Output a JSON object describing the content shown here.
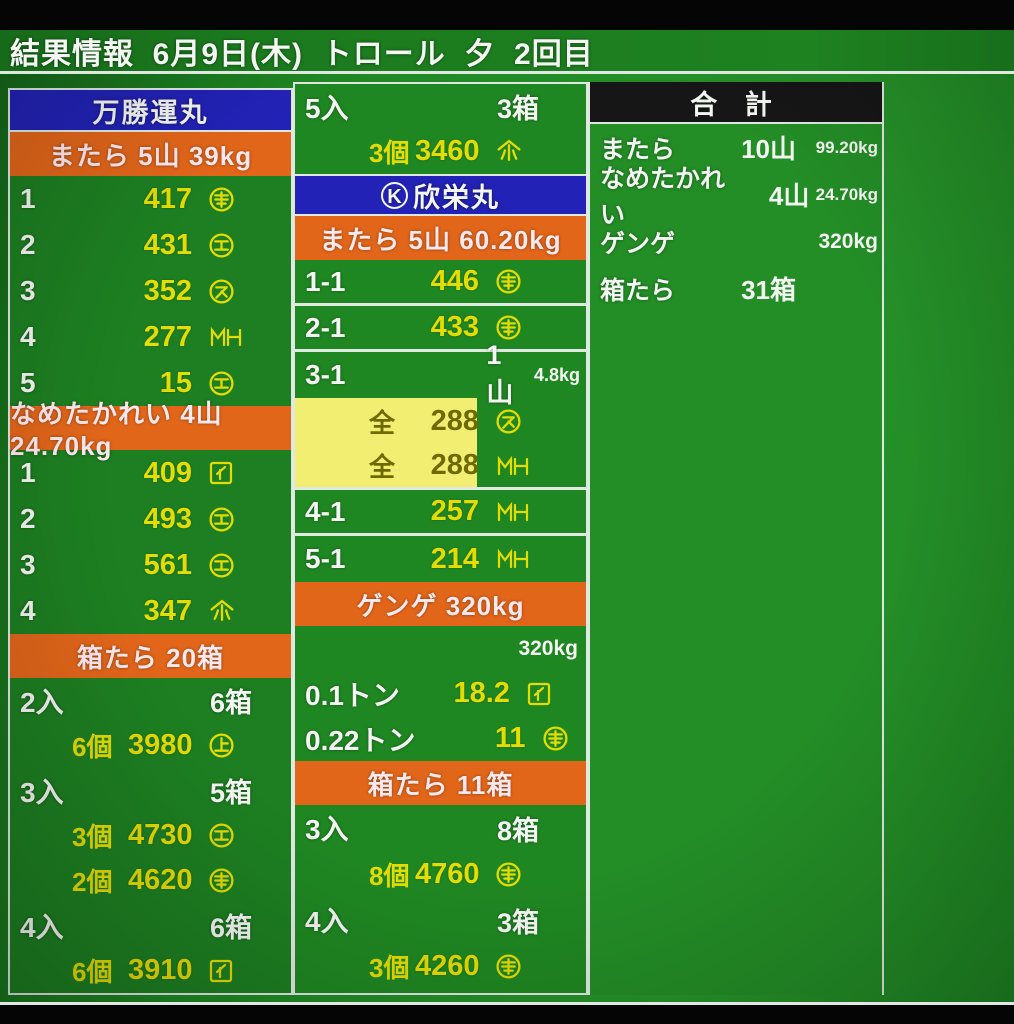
{
  "title": "結果情報  6月9日(木)  トロール  夕  2回目",
  "colors": {
    "background_green": "#1f8823",
    "title_green": "#1b7a1e",
    "header_blue": "#2222b6",
    "header_orange": "#e2661a",
    "totals_black": "#161616",
    "value_yellow": "#e5dc00",
    "text_white": "#f4f6f3",
    "highlight_yellow": "#f2ee72",
    "highlight_text": "#6e6a00",
    "line_white": "#dfe9e2"
  },
  "panels": {
    "left": {
      "vessel": "万勝運丸",
      "sections": [
        {
          "header": "またら 5山 39kg",
          "rows": [
            {
              "no": "1",
              "value": "417",
              "mark": "maru-kou-icon"
            },
            {
              "no": "2",
              "value": "431",
              "mark": "maru-e-icon"
            },
            {
              "no": "3",
              "value": "352",
              "mark": "maru-su-icon"
            },
            {
              "no": "4",
              "value": "277",
              "mark": "mh-icon"
            },
            {
              "no": "5",
              "value": "15",
              "mark": "maru-e-icon"
            }
          ]
        },
        {
          "header": "なめたかれい 4山 24.70kg",
          "rows": [
            {
              "no": "1",
              "value": "409",
              "mark": "kaku-i-icon"
            },
            {
              "no": "2",
              "value": "493",
              "mark": "maru-e-icon"
            },
            {
              "no": "3",
              "value": "561",
              "mark": "maru-e-icon"
            },
            {
              "no": "4",
              "value": "347",
              "mark": "yama-icon"
            }
          ]
        },
        {
          "header": "箱たら 20箱",
          "rows": [
            {
              "no": "2入",
              "aux": "6箱"
            },
            {
              "count": "6個",
              "value": "3980",
              "mark": "maru-ue-icon"
            },
            {
              "no": "3入",
              "aux": "5箱"
            },
            {
              "count": "3個",
              "value": "4730",
              "mark": "maru-e-icon"
            },
            {
              "count": "2個",
              "value": "4620",
              "mark": "maru-kou-icon"
            },
            {
              "no": "4入",
              "aux": "6箱"
            },
            {
              "count": "6個",
              "value": "3910",
              "mark": "kaku-i-icon"
            }
          ]
        }
      ]
    },
    "middle": {
      "carryover": [
        {
          "no": "5入",
          "aux": "3箱"
        },
        {
          "count": "3個",
          "value": "3460",
          "mark": "yama-icon"
        }
      ],
      "vessel_mark_letter": "K",
      "vessel_name": "欣栄丸",
      "sections": [
        {
          "header": "またら 5山 60.20kg",
          "rows": [
            {
              "no": "1-1",
              "value": "446",
              "mark": "maru-kou-icon",
              "sep": true
            },
            {
              "no": "2-1",
              "value": "433",
              "mark": "maru-kou-icon",
              "sep": true
            },
            {
              "no": "3-1",
              "aux": "1山",
              "aux2": "4.8kg"
            },
            {
              "count": "全",
              "value": "288",
              "mark": "maru-su-icon",
              "highlight": true
            },
            {
              "count": "全",
              "value": "288",
              "mark": "mh-icon",
              "highlight": true,
              "sep": true
            },
            {
              "no": "4-1",
              "value": "257",
              "mark": "mh-icon",
              "sep": true
            },
            {
              "no": "5-1",
              "value": "214",
              "mark": "mh-icon"
            }
          ]
        },
        {
          "header": "ゲンゲ 320kg",
          "rows": [
            {
              "right": "320kg"
            },
            {
              "no": "0.1トン",
              "value": "18.2",
              "mark": "kaku-i-icon"
            },
            {
              "no": "0.22トン",
              "value": "11",
              "mark": "maru-kou-icon"
            }
          ]
        },
        {
          "header": "箱たら 11箱",
          "rows": [
            {
              "no": "3入",
              "aux": "8箱"
            },
            {
              "count": "8個",
              "value": "4760",
              "mark": "maru-kou-icon"
            },
            {
              "no": "4入",
              "aux": "3箱"
            },
            {
              "count": "3個",
              "value": "4260",
              "mark": "maru-kou-icon"
            }
          ]
        }
      ]
    },
    "totals": {
      "header": "合 計",
      "rows": [
        {
          "label": "またら",
          "value": "10山",
          "sub": "99.20kg"
        },
        {
          "label": "なめたかれい",
          "value": "4山",
          "sub": "24.70kg"
        },
        {
          "label": "ゲンゲ",
          "value": "",
          "sub": "320kg",
          "sub_large": true
        },
        {
          "label": "箱たら",
          "value": "31箱",
          "sub": ""
        }
      ]
    }
  }
}
